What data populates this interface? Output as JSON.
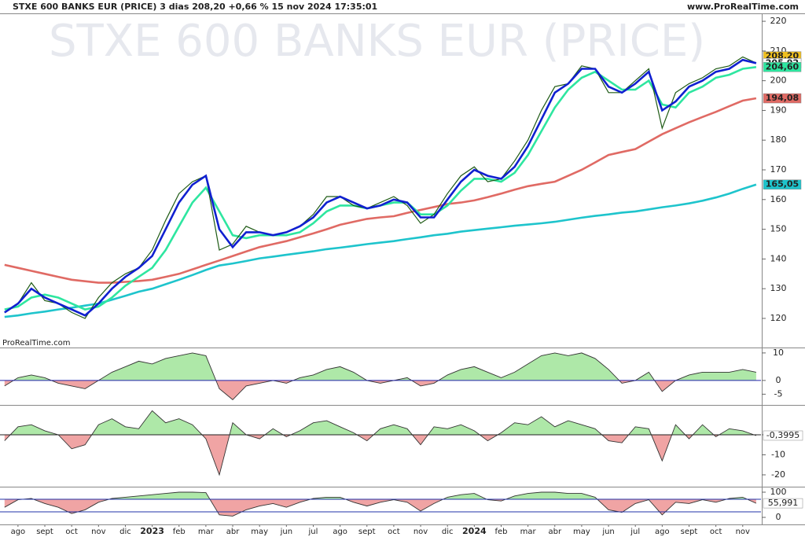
{
  "header": {
    "title": "STXE 600 BANKS EUR (PRICE) 3 dias 208,20 +0,66 % 15 nov 2024 17:35:01",
    "site": "www.ProRealTime.com",
    "watermark": "STXE 600 BANKS EUR (PRICE)",
    "credit": "ProRealTime.com"
  },
  "chart_data": [
    {
      "type": "line",
      "xlim": [
        -0.67,
        27.68
      ],
      "ylim": [
        110.2,
        222.4
      ],
      "yticks": [
        120,
        130,
        140,
        150,
        160,
        170,
        180,
        190,
        200,
        210,
        220
      ],
      "x": [
        -0.5,
        0,
        0.5,
        1,
        1.5,
        2,
        2.5,
        3,
        3.5,
        4,
        4.5,
        5,
        5.5,
        6,
        6.5,
        7,
        7.5,
        8,
        8.5,
        9,
        9.5,
        10,
        10.5,
        11,
        11.5,
        12,
        12.5,
        13,
        13.5,
        14,
        14.5,
        15,
        15.5,
        16,
        16.5,
        17,
        17.5,
        18,
        18.5,
        19,
        19.5,
        20,
        20.5,
        21,
        21.5,
        22,
        22.5,
        23,
        23.5,
        24,
        24.5,
        25,
        25.5,
        26,
        26.5,
        27,
        27.5
      ],
      "series": [
        {
          "color": "#e06a64",
          "values": [
            138,
            137,
            136,
            135,
            134,
            133,
            132.5,
            132,
            132,
            132.3,
            132.6,
            133,
            134,
            135,
            136.5,
            138,
            139.5,
            141,
            142.5,
            144,
            145,
            146,
            147.3,
            148.6,
            150,
            151.5,
            152.5,
            153.5,
            154,
            154.4,
            155.5,
            156.5,
            157.5,
            158.5,
            159,
            159.7,
            160.8,
            162,
            163.3,
            164.5,
            165.3,
            166,
            168,
            170,
            172.5,
            175,
            176,
            177,
            179.5,
            182,
            184,
            186,
            187.8,
            189.5,
            191.4,
            193.3,
            194.08
          ]
        },
        {
          "color": "#1ec4cc",
          "values": [
            120.5,
            121,
            121.7,
            122.3,
            123,
            123.6,
            124.3,
            125,
            126.3,
            127.6,
            129,
            130,
            131.5,
            133,
            134.6,
            136.3,
            137.8,
            138.5,
            139.3,
            140.2,
            140.8,
            141.4,
            142,
            142.6,
            143.3,
            143.8,
            144.4,
            145,
            145.5,
            146,
            146.7,
            147.3,
            148,
            148.5,
            149.2,
            149.7,
            150.2,
            150.7,
            151.2,
            151.6,
            152,
            152.5,
            153.2,
            153.9,
            154.5,
            155,
            155.6,
            156,
            156.7,
            157.4,
            158,
            158.7,
            159.6,
            160.7,
            162,
            163.6,
            165.05
          ]
        },
        {
          "color": "#2ee6a0",
          "values": [
            123,
            124,
            127,
            128,
            127,
            125,
            123,
            124,
            127,
            131,
            134,
            137,
            143,
            151,
            159,
            164,
            156,
            148,
            147,
            148,
            148,
            148,
            149,
            152,
            156,
            158,
            158,
            157,
            158,
            159,
            159,
            155,
            155,
            158,
            163,
            167,
            167,
            166,
            169,
            175,
            183,
            191,
            197,
            201,
            203,
            200,
            197,
            197,
            200,
            192,
            191,
            196,
            198,
            201,
            202,
            204,
            204.6
          ]
        },
        {
          "color": "#1e5a14",
          "values": [
            122,
            125,
            132,
            126,
            125,
            122,
            120,
            127,
            132,
            135,
            137,
            143,
            153,
            162,
            166,
            168,
            143,
            145,
            151,
            149,
            148,
            149,
            151,
            155,
            161,
            161,
            158,
            157,
            159,
            161,
            158,
            152,
            155,
            162,
            168,
            171,
            166,
            167,
            173,
            180,
            190,
            198,
            199,
            205,
            204,
            196,
            196,
            200,
            204,
            184,
            196,
            199,
            201,
            204,
            205,
            208,
            206
          ]
        },
        {
          "color": "#1020d0",
          "values": [
            122,
            125,
            130,
            127,
            125,
            123,
            121,
            125,
            130,
            134,
            137,
            141,
            150,
            159,
            165,
            168,
            150,
            144,
            149,
            149,
            148,
            149,
            151,
            154,
            159,
            161,
            159,
            157,
            158,
            160,
            159,
            154,
            154,
            160,
            166,
            170,
            168,
            167,
            171,
            178,
            187,
            196,
            199,
            204,
            204,
            198,
            196,
            199,
            203,
            190,
            193,
            198,
            200,
            203,
            204,
            207,
            205.92
          ]
        }
      ],
      "price_labels": [
        {
          "value": 208.2,
          "label": "208,20",
          "color": "#f0c020"
        },
        {
          "value": 205.92,
          "label": "205,92",
          "color": "#ffffff"
        },
        {
          "value": 204.6,
          "label": "204,60",
          "color": "#2ee6a0"
        },
        {
          "value": 194.08,
          "label": "194,08",
          "color": "#e06a64"
        },
        {
          "value": 165.05,
          "label": "165,05",
          "color": "#1ec4cc"
        }
      ]
    },
    {
      "type": "area",
      "xlim": [
        -0.67,
        27.68
      ],
      "ylim": [
        -8.9,
        11.4
      ],
      "yticks": [
        10,
        0,
        -5
      ],
      "baseline": 0,
      "color": "#2222aa",
      "x": [
        -0.5,
        0,
        0.5,
        1,
        1.5,
        2,
        2.5,
        3,
        3.5,
        4,
        4.5,
        5,
        5.5,
        6,
        6.5,
        7,
        7.5,
        8,
        8.5,
        9,
        9.5,
        10,
        10.5,
        11,
        11.5,
        12,
        12.5,
        13,
        13.5,
        14,
        14.5,
        15,
        15.5,
        16,
        16.5,
        17,
        17.5,
        18,
        18.5,
        19,
        19.5,
        20,
        20.5,
        21,
        21.5,
        22,
        22.5,
        23,
        23.5,
        24,
        24.5,
        25,
        25.5,
        26,
        26.5,
        27,
        27.5
      ],
      "values": [
        -2,
        1,
        2,
        1,
        -1,
        -2,
        -3,
        0,
        3,
        5,
        7,
        6,
        8,
        9,
        10,
        9,
        -3,
        -7,
        -2,
        -1,
        0,
        -1,
        1,
        2,
        4,
        5,
        3,
        0,
        -1,
        0,
        1,
        -2,
        -1,
        2,
        4,
        5,
        3,
        1,
        3,
        6,
        9,
        10,
        9,
        10,
        8,
        4,
        -1,
        0,
        3,
        -4,
        0,
        2,
        3,
        3,
        3,
        4,
        3
      ]
    },
    {
      "type": "area",
      "xlim": [
        -0.67,
        27.68
      ],
      "ylim": [
        -25.9,
        14.1
      ],
      "yticks": [
        0,
        -10,
        -20
      ],
      "baseline": 0,
      "color": "#222222",
      "last_label": "-0,3995",
      "x": [
        -0.5,
        0,
        0.5,
        1,
        1.5,
        2,
        2.5,
        3,
        3.5,
        4,
        4.5,
        5,
        5.5,
        6,
        6.5,
        7,
        7.5,
        8,
        8.5,
        9,
        9.5,
        10,
        10.5,
        11,
        11.5,
        12,
        12.5,
        13,
        13.5,
        14,
        14.5,
        15,
        15.5,
        16,
        16.5,
        17,
        17.5,
        18,
        18.5,
        19,
        19.5,
        20,
        20.5,
        21,
        21.5,
        22,
        22.5,
        23,
        23.5,
        24,
        24.5,
        25,
        25.5,
        26,
        26.5,
        27,
        27.5
      ],
      "values": [
        -3,
        4,
        5,
        2,
        0,
        -7,
        -5,
        5,
        8,
        4,
        3,
        12,
        6,
        8,
        5,
        -2,
        -20,
        6,
        0,
        -2,
        3,
        -1,
        2,
        6,
        7,
        4,
        1,
        -3,
        3,
        5,
        3,
        -5,
        4,
        3,
        5,
        2,
        -3,
        1,
        6,
        5,
        9,
        4,
        7,
        5,
        3,
        -3,
        -4,
        4,
        3,
        -13,
        5,
        -2,
        5,
        -1,
        3,
        2,
        -0.3995
      ]
    },
    {
      "type": "area",
      "xlim": [
        -0.67,
        27.68
      ],
      "ylim": [
        -28,
        115.6
      ],
      "yticks": [
        100,
        0
      ],
      "baseline": 72,
      "levels": [
        72,
        22
      ],
      "color": "#222222",
      "last_label": "55,991",
      "x": [
        -0.5,
        0,
        0.5,
        1,
        1.5,
        2,
        2.5,
        3,
        3.5,
        4,
        4.5,
        5,
        5.5,
        6,
        6.5,
        7,
        7.5,
        8,
        8.5,
        9,
        9.5,
        10,
        10.5,
        11,
        11.5,
        12,
        12.5,
        13,
        13.5,
        14,
        14.5,
        15,
        15.5,
        16,
        16.5,
        17,
        17.5,
        18,
        18.5,
        19,
        19.5,
        20,
        20.5,
        21,
        21.5,
        22,
        22.5,
        23,
        23.5,
        24,
        24.5,
        25,
        25.5,
        26,
        26.5,
        27,
        27.5
      ],
      "values": [
        40,
        70,
        75,
        55,
        40,
        15,
        30,
        60,
        75,
        80,
        85,
        90,
        95,
        100,
        100,
        98,
        10,
        5,
        30,
        45,
        55,
        40,
        60,
        75,
        80,
        80,
        60,
        45,
        60,
        70,
        60,
        25,
        55,
        80,
        90,
        95,
        70,
        65,
        85,
        95,
        100,
        100,
        95,
        95,
        80,
        30,
        20,
        55,
        70,
        10,
        60,
        55,
        70,
        60,
        75,
        80,
        55.991
      ],
      "xticks": [
        {
          "value": 0,
          "label": "ago"
        },
        {
          "value": 1,
          "label": "sept"
        },
        {
          "value": 2,
          "label": "oct"
        },
        {
          "value": 3,
          "label": "nov"
        },
        {
          "value": 4,
          "label": "dic"
        },
        {
          "value": 5,
          "label": "2023"
        },
        {
          "value": 6,
          "label": "feb"
        },
        {
          "value": 7,
          "label": "mar"
        },
        {
          "value": 8,
          "label": "abr"
        },
        {
          "value": 9,
          "label": "may"
        },
        {
          "value": 10,
          "label": "jun"
        },
        {
          "value": 11,
          "label": "jul"
        },
        {
          "value": 12,
          "label": "ago"
        },
        {
          "value": 13,
          "label": "sept"
        },
        {
          "value": 14,
          "label": "oct"
        },
        {
          "value": 15,
          "label": "nov"
        },
        {
          "value": 16,
          "label": "dic"
        },
        {
          "value": 17,
          "label": "2024"
        },
        {
          "value": 18,
          "label": "feb"
        },
        {
          "value": 19,
          "label": "mar"
        },
        {
          "value": 20,
          "label": "abr"
        },
        {
          "value": 21,
          "label": "may"
        },
        {
          "value": 22,
          "label": "jun"
        },
        {
          "value": 23,
          "label": "jul"
        },
        {
          "value": 24,
          "label": "ago"
        },
        {
          "value": 25,
          "label": "sept"
        },
        {
          "value": 26,
          "label": "oct"
        },
        {
          "value": 27,
          "label": "nov"
        }
      ]
    }
  ]
}
